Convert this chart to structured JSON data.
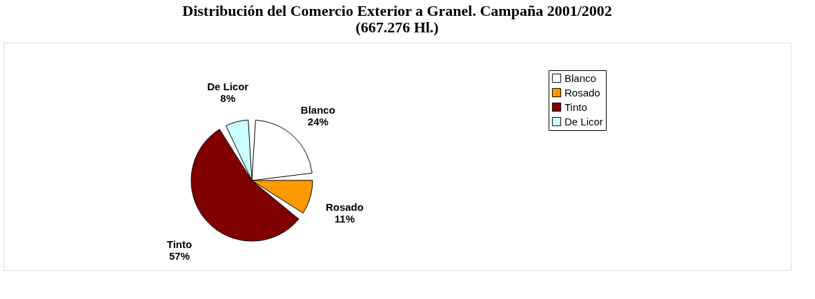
{
  "chart_data": {
    "type": "pie",
    "title": [
      "Distribución del Comercio Exterior a Granel. Campaña 2001/2002",
      "(667.276 Hl.)"
    ],
    "categories": [
      "Blanco",
      "Rosado",
      "Tinto",
      "De Licor"
    ],
    "values": [
      24,
      11,
      57,
      8
    ],
    "colors": [
      "#ffffff",
      "#ff9900",
      "#800000",
      "#ccffff"
    ],
    "value_labels": [
      "24%",
      "11%",
      "57%",
      "8%"
    ],
    "legend": "right"
  }
}
